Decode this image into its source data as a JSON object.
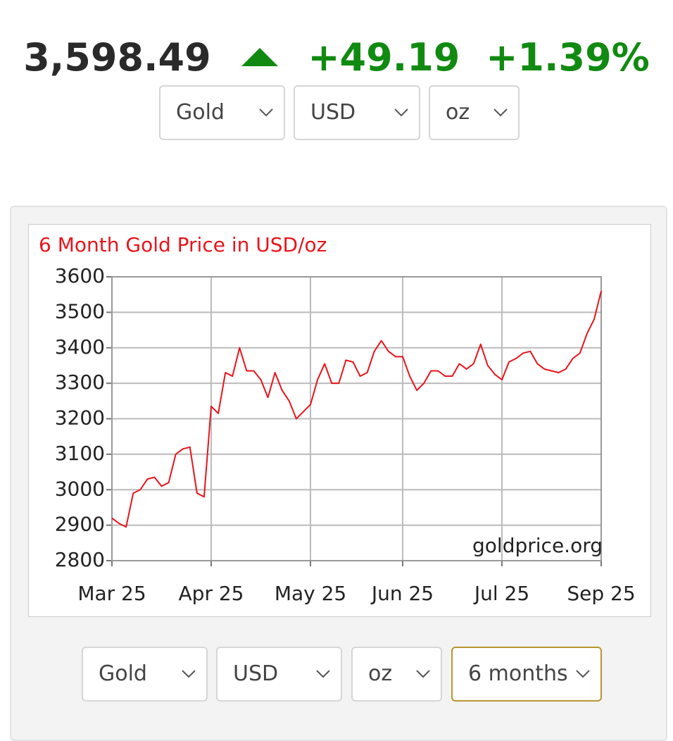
{
  "header": {
    "price": "3,598.49",
    "change": "+49.19",
    "change_percent": "+1.39%",
    "selects": [
      "Gold",
      "USD",
      "oz"
    ]
  },
  "chart_data": {
    "type": "line",
    "title": "6 Month Gold Price in USD/oz",
    "watermark": "goldprice.org",
    "series": [
      {
        "name": "Gold",
        "color": "#e8141b",
        "values": [
          2920,
          2905,
          2895,
          2990,
          3000,
          3030,
          3035,
          3010,
          3020,
          3100,
          3115,
          3120,
          2990,
          2980,
          3235,
          3215,
          3330,
          3320,
          3400,
          3335,
          3335,
          3310,
          3260,
          3330,
          3280,
          3250,
          3200,
          3220,
          3240,
          3310,
          3355,
          3300,
          3300,
          3365,
          3360,
          3320,
          3330,
          3390,
          3420,
          3390,
          3375,
          3375,
          3320,
          3280,
          3300,
          3335,
          3335,
          3320,
          3320,
          3355,
          3340,
          3355,
          3410,
          3350,
          3325,
          3310,
          3360,
          3370,
          3385,
          3390,
          3355,
          3340,
          3335,
          3330,
          3340,
          3370,
          3385,
          3440,
          3480,
          3560
        ]
      }
    ],
    "xlim": [
      0,
      69
    ],
    "xticks": [
      {
        "value": 0,
        "label": "Mar 25"
      },
      {
        "value": 14,
        "label": "Apr 25"
      },
      {
        "value": 28,
        "label": "May 25"
      },
      {
        "value": 41,
        "label": "Jun 25"
      },
      {
        "value": 55,
        "label": "Jul 25"
      },
      {
        "value": 69,
        "label": "Sep 25"
      }
    ],
    "ylim": [
      2800,
      3600
    ],
    "yticks": [
      2800,
      2900,
      3000,
      3100,
      3200,
      3300,
      3400,
      3500,
      3600
    ],
    "grid": true
  },
  "footer": {
    "selects": [
      "Gold",
      "USD",
      "oz",
      "6 months"
    ]
  }
}
